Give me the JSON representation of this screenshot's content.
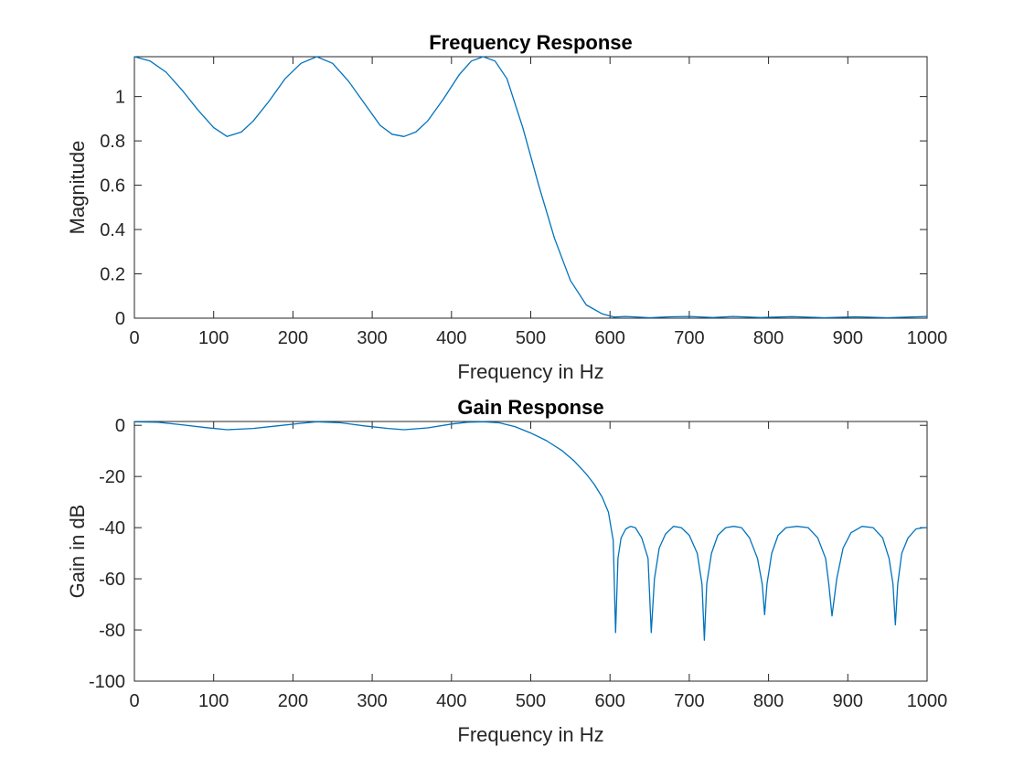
{
  "chart_data": [
    {
      "type": "line",
      "title": "Frequency Response",
      "xlabel": "Frequency in Hz",
      "ylabel": "Magnitude",
      "xlim": [
        0,
        1000
      ],
      "ylim": [
        0,
        1.18
      ],
      "x_ticks": [
        0,
        100,
        200,
        300,
        400,
        500,
        600,
        700,
        800,
        900,
        1000
      ],
      "y_ticks": [
        0,
        0.2,
        0.4,
        0.6,
        0.8,
        1
      ],
      "color": "#0072BD",
      "grid": false,
      "series": [
        {
          "x": [
            0,
            20,
            40,
            60,
            80,
            100,
            117,
            135,
            150,
            170,
            190,
            210,
            230,
            250,
            270,
            290,
            310,
            325,
            340,
            355,
            370,
            390,
            410,
            425,
            440,
            455,
            470,
            490,
            510,
            530,
            550,
            570,
            590,
            605,
            620,
            650,
            675,
            700,
            730,
            755,
            790,
            830,
            870,
            910,
            950,
            1000
          ],
          "y": [
            1.18,
            1.16,
            1.11,
            1.03,
            0.94,
            0.86,
            0.82,
            0.84,
            0.89,
            0.98,
            1.08,
            1.15,
            1.18,
            1.15,
            1.07,
            0.97,
            0.87,
            0.83,
            0.82,
            0.84,
            0.89,
            0.99,
            1.1,
            1.16,
            1.18,
            1.16,
            1.08,
            0.86,
            0.6,
            0.36,
            0.17,
            0.06,
            0.02,
            0.005,
            0.008,
            0.002,
            0.006,
            0.008,
            0.003,
            0.008,
            0.003,
            0.007,
            0.002,
            0.006,
            0.002,
            0.008
          ]
        }
      ]
    },
    {
      "type": "line",
      "title": "Gain Response",
      "xlabel": "Frequency in Hz",
      "ylabel": "Gain in dB",
      "xlim": [
        0,
        1000
      ],
      "ylim": [
        -100,
        1.5
      ],
      "x_ticks": [
        0,
        100,
        200,
        300,
        400,
        500,
        600,
        700,
        800,
        900,
        1000
      ],
      "y_ticks": [
        0,
        -20,
        -40,
        -60,
        -80,
        -100
      ],
      "color": "#0072BD",
      "grid": false,
      "series": [
        {
          "x": [
            0,
            30,
            60,
            90,
            117,
            150,
            180,
            210,
            230,
            260,
            290,
            320,
            340,
            370,
            400,
            420,
            440,
            460,
            480,
            500,
            520,
            540,
            555,
            570,
            580,
            590,
            598,
            604,
            607,
            610,
            614,
            620,
            626,
            632,
            640,
            648,
            652,
            656,
            662,
            670,
            680,
            690,
            700,
            710,
            716,
            719,
            722,
            728,
            736,
            746,
            756,
            766,
            776,
            786,
            792,
            795,
            798,
            804,
            812,
            822,
            836,
            850,
            862,
            872,
            876,
            880,
            886,
            894,
            904,
            918,
            932,
            944,
            952,
            957,
            960,
            963,
            968,
            976,
            986,
            996,
            1000
          ],
          "y": [
            1.4,
            1.2,
            0.2,
            -0.9,
            -1.7,
            -1.2,
            -0.2,
            0.8,
            1.4,
            1.0,
            -0.2,
            -1.2,
            -1.7,
            -1.0,
            0.5,
            1.2,
            1.4,
            1.0,
            -0.5,
            -3,
            -6,
            -10,
            -14,
            -19,
            -23,
            -28,
            -34,
            -45,
            -81,
            -52,
            -44,
            -40.5,
            -39.5,
            -40,
            -44,
            -52,
            -81,
            -60,
            -48,
            -42.5,
            -39.5,
            -40,
            -43,
            -50,
            -62,
            -84,
            -62,
            -50,
            -43,
            -40,
            -39.5,
            -40,
            -44,
            -52,
            -62,
            -74,
            -62,
            -50,
            -43,
            -40,
            -39.5,
            -40,
            -44,
            -52,
            -62,
            -74.5,
            -60,
            -48,
            -42,
            -39.5,
            -40,
            -44,
            -52,
            -62,
            -78,
            -62,
            -50,
            -44,
            -40.5,
            -40,
            -40
          ]
        }
      ]
    }
  ]
}
